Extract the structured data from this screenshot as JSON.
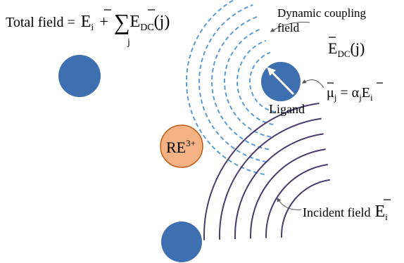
{
  "total_field": {
    "label": "Total field =",
    "term1": {
      "symbol": "E",
      "sub": "i"
    },
    "plus": "+",
    "sum": "∑",
    "sum_index": "j",
    "term2": {
      "symbol": "E",
      "sub": "DC",
      "arg": "(j)"
    }
  },
  "dynamic_coupling": {
    "label_line1": "Dynamic coupling",
    "label_line2": "field",
    "symbol": "E",
    "sub": "DC",
    "arg": "(j)"
  },
  "dipole": {
    "symbol": "μ",
    "sub": "j",
    "equals": "=",
    "alpha": "α",
    "alpha_sub": "j",
    "field": "E",
    "field_sub": "i"
  },
  "ligand": "Ligand",
  "ion": {
    "symbol": "RE",
    "sup": "3+"
  },
  "incident": {
    "label": "Incident field",
    "symbol": "E",
    "sub": "i"
  }
}
